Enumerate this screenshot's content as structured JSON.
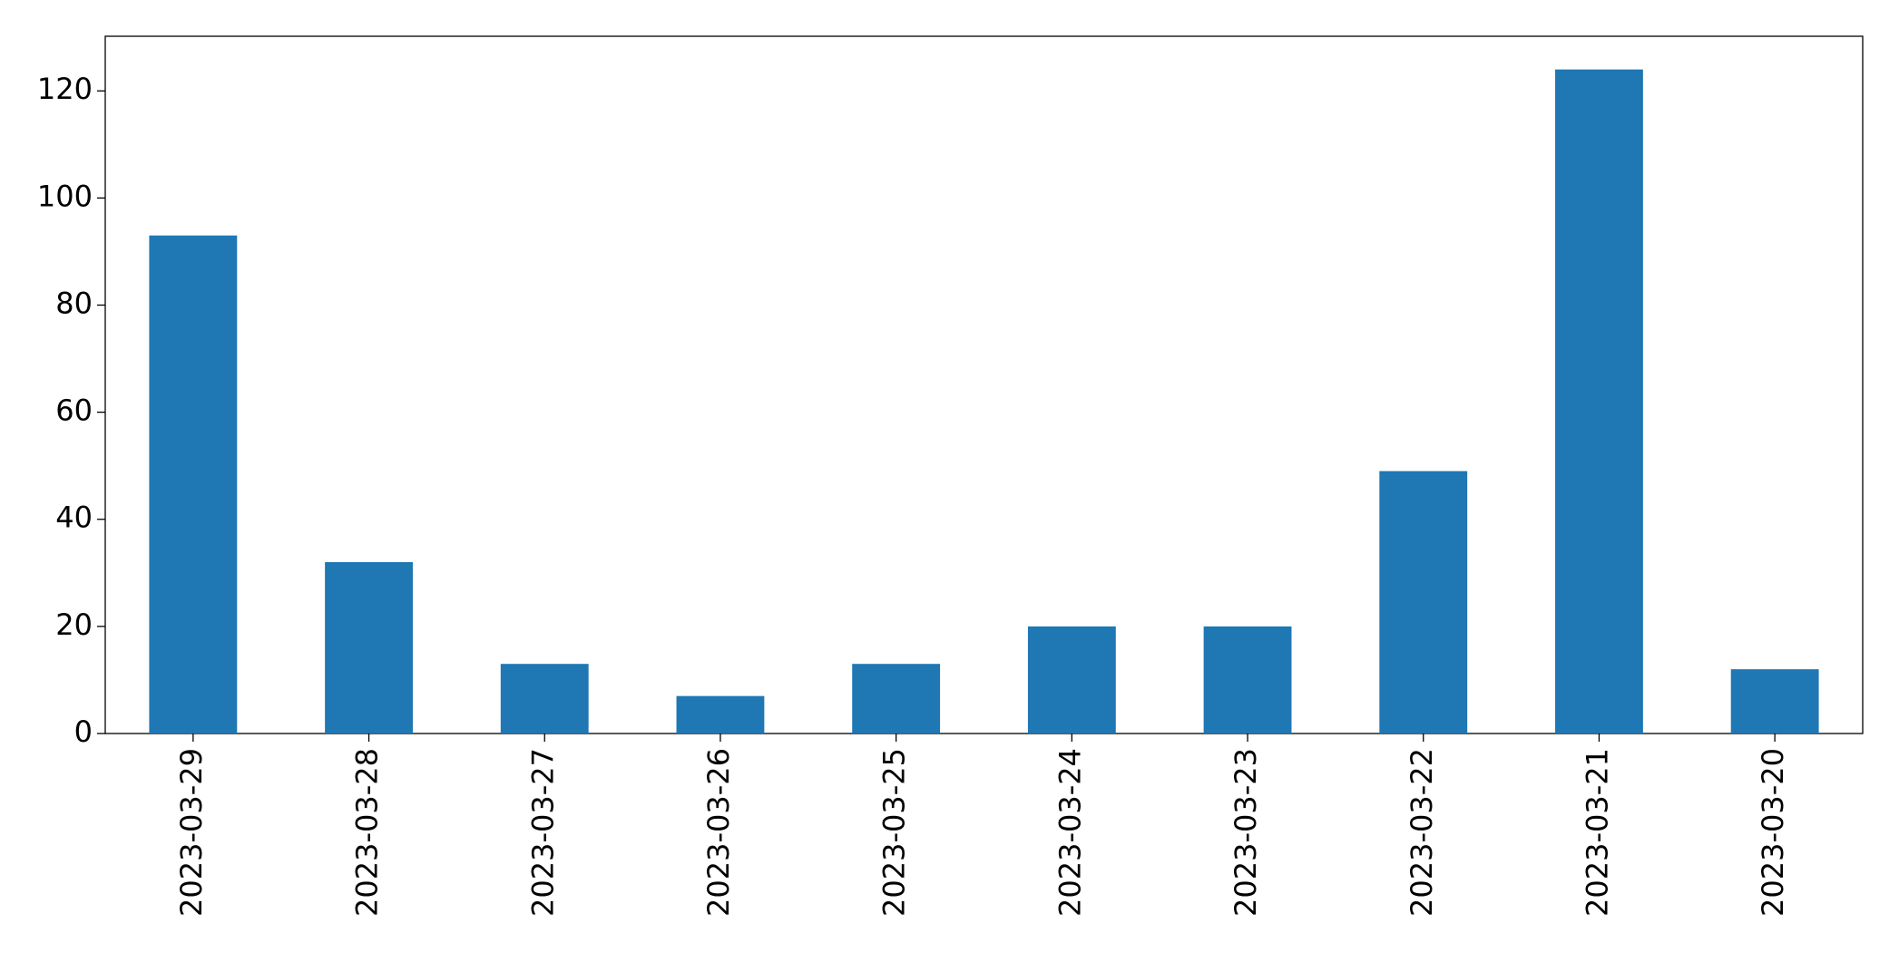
{
  "chart_data": {
    "type": "bar",
    "categories": [
      "2023-03-29",
      "2023-03-28",
      "2023-03-27",
      "2023-03-26",
      "2023-03-25",
      "2023-03-24",
      "2023-03-23",
      "2023-03-22",
      "2023-03-21",
      "2023-03-20"
    ],
    "values": [
      93,
      32,
      13,
      7,
      13,
      20,
      20,
      49,
      124,
      12
    ],
    "color": "#1f77b4",
    "ylim": [
      0,
      130.2
    ],
    "yticks": [
      0,
      20,
      40,
      60,
      80,
      100,
      120
    ],
    "grid": false
  }
}
